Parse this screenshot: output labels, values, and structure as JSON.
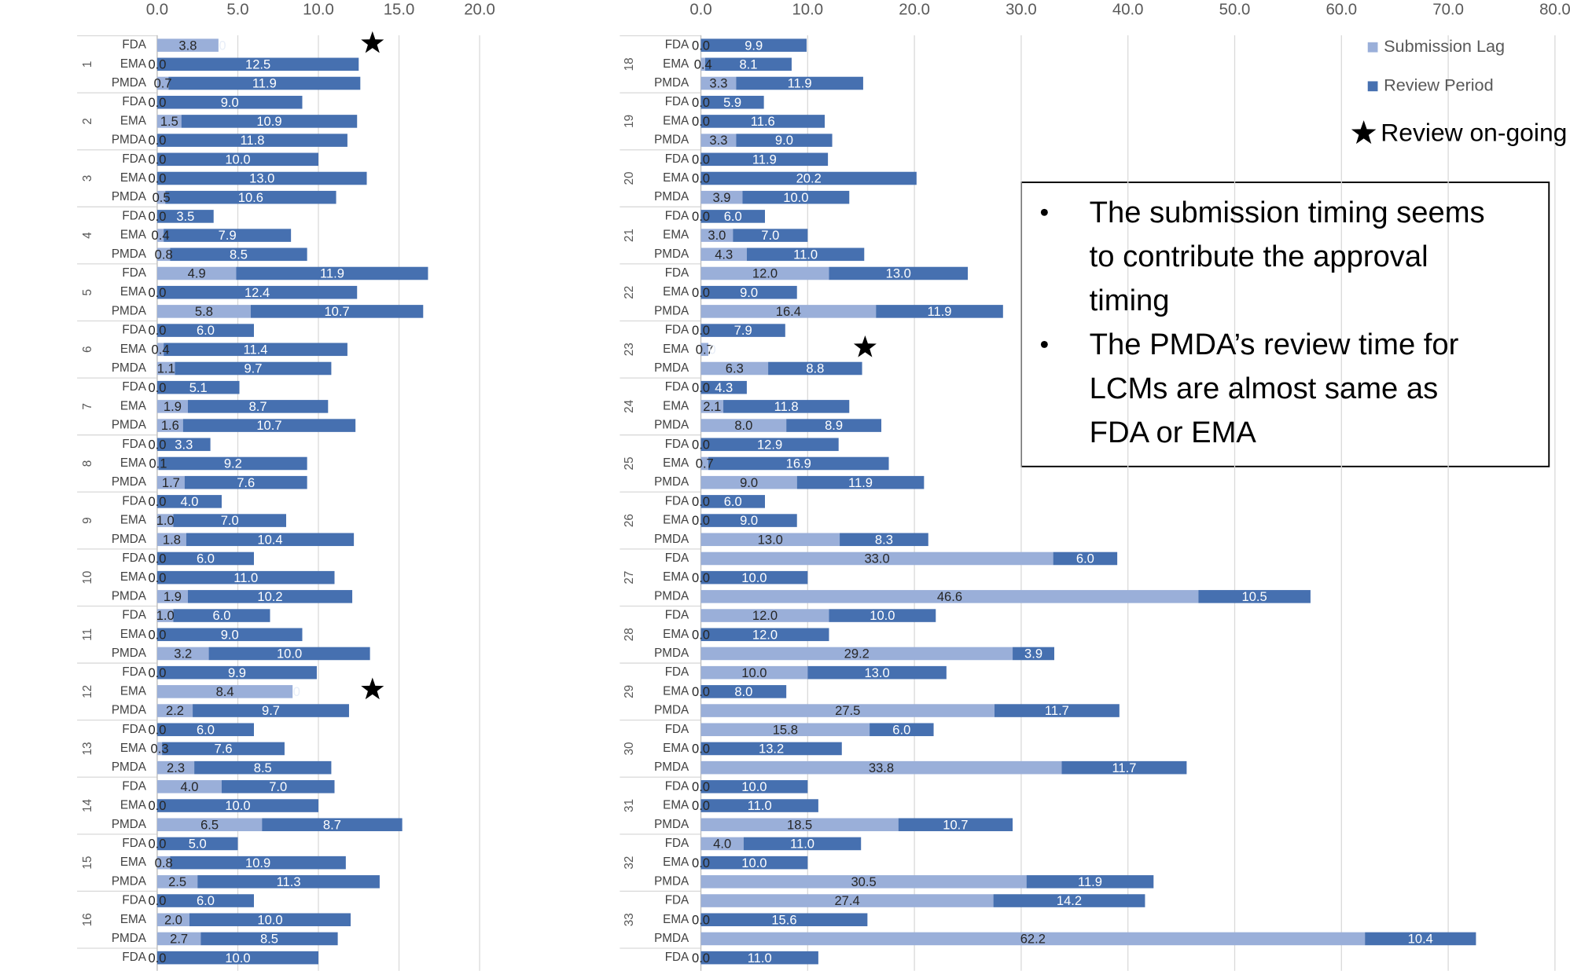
{
  "chart_data": {
    "type": "bar",
    "orientation": "horizontal",
    "stacked": true,
    "grid": true,
    "series": [
      {
        "name": "Submission Lag",
        "color": "#9aafd9"
      },
      {
        "name": "Review Period",
        "color": "#4670b0"
      }
    ],
    "marker_label": "Review on-going",
    "panels": [
      {
        "xlim": [
          0,
          20
        ],
        "xticks": [
          {
            "value": 0,
            "label": "0.0"
          },
          {
            "value": 5,
            "label": "5.0"
          },
          {
            "value": 10,
            "label": "10.0"
          },
          {
            "value": 15,
            "label": "15.0"
          },
          {
            "value": 20,
            "label": "20.0"
          }
        ],
        "groups": [
          "1",
          "2",
          "3",
          "4",
          "5",
          "6",
          "7",
          "8",
          "9",
          "10",
          "11",
          "12",
          "13",
          "14",
          "15",
          "16",
          null
        ],
        "categories": [
          "FDA",
          "EMA",
          "PMDA",
          "FDA",
          "EMA",
          "PMDA",
          "FDA",
          "EMA",
          "PMDA",
          "FDA",
          "EMA",
          "PMDA",
          "FDA",
          "EMA",
          "PMDA",
          "FDA",
          "EMA",
          "PMDA",
          "FDA",
          "EMA",
          "PMDA",
          "FDA",
          "EMA",
          "PMDA",
          "FDA",
          "EMA",
          "PMDA",
          "FDA",
          "EMA",
          "PMDA",
          "FDA",
          "EMA",
          "PMDA",
          "FDA",
          "EMA",
          "PMDA",
          "FDA",
          "EMA",
          "PMDA",
          "FDA",
          "EMA",
          "PMDA",
          "FDA",
          "EMA",
          "PMDA",
          "FDA",
          "EMA",
          "PMDA",
          "FDA"
        ],
        "lag": [
          3.8,
          0,
          0.7,
          0,
          1.5,
          0,
          0,
          0,
          0.5,
          0,
          0.4,
          0.8,
          4.9,
          0,
          5.8,
          0,
          0.4,
          1.1,
          0,
          1.9,
          1.6,
          0,
          0.1,
          1.7,
          0,
          1,
          1.8,
          0,
          0,
          1.9,
          1,
          0,
          3.2,
          0,
          8.4,
          2.2,
          0,
          0.3,
          2.3,
          4,
          0,
          6.5,
          0,
          0.8,
          2.5,
          0,
          2,
          2.7,
          0
        ],
        "lag_labels": [
          "3.8",
          "0.0",
          "0.7",
          "0.0",
          "1.5",
          "0.0",
          "0.0",
          "0.0",
          "0.5",
          "0.0",
          "0.4",
          "0.8",
          "4.9",
          "0.0",
          "5.8",
          "0.0",
          "0.4",
          "1.1",
          "0.0",
          "1.9",
          "1.6",
          "0.0",
          "0.1",
          "1.7",
          "0.0",
          "1.0",
          "1.8",
          "0.0",
          "0.0",
          "1.9",
          "1.0",
          "0.0",
          "3.2",
          "0.0",
          "8.4",
          "2.2",
          "0.0",
          "0.3",
          "2.3",
          "4.0",
          "0.0",
          "6.5",
          "0.0",
          "0.8",
          "2.5",
          "0.0",
          "2.0",
          "2.7",
          "0.0"
        ],
        "review": [
          0,
          12.5,
          11.9,
          9,
          10.9,
          11.8,
          10,
          13,
          10.6,
          3.5,
          7.9,
          8.5,
          11.9,
          12.4,
          10.7,
          6,
          11.4,
          9.7,
          5.1,
          8.7,
          10.7,
          3.3,
          9.2,
          7.6,
          4,
          7,
          10.4,
          6,
          11,
          10.2,
          6,
          9,
          10,
          9.9,
          0,
          9.7,
          6,
          7.6,
          8.5,
          7,
          10,
          8.7,
          5,
          10.9,
          11.3,
          6,
          10,
          8.5,
          10
        ],
        "review_labels": [
          "0",
          "12.5",
          "11.9",
          "9.0",
          "10.9",
          "11.8",
          "10.0",
          "13.0",
          "10.6",
          "3.5",
          "7.9",
          "8.5",
          "11.9",
          "12.4",
          "10.7",
          "6.0",
          "11.4",
          "9.7",
          "5.1",
          "8.7",
          "10.7",
          "3.3",
          "9.2",
          "7.6",
          "4.0",
          "7.0",
          "10.4",
          "6.0",
          "11.0",
          "10.2",
          "6.0",
          "9.0",
          "10.0",
          "9.9",
          "0",
          "9.7",
          "6.0",
          "7.6",
          "8.5",
          "7.0",
          "10.0",
          "8.7",
          "5.0",
          "10.9",
          "11.3",
          "6.0",
          "10.0",
          "8.5",
          "10.0"
        ],
        "ongoing": [
          0,
          34
        ]
      },
      {
        "xlim": [
          0,
          80
        ],
        "xticks": [
          {
            "value": 0,
            "label": "0.0"
          },
          {
            "value": 10,
            "label": "10.0"
          },
          {
            "value": 20,
            "label": "20.0"
          },
          {
            "value": 30,
            "label": "30.0"
          },
          {
            "value": 40,
            "label": "40.0"
          },
          {
            "value": 50,
            "label": "50.0"
          },
          {
            "value": 60,
            "label": "60.0"
          },
          {
            "value": 70,
            "label": "70.0"
          },
          {
            "value": 80,
            "label": "80.0"
          }
        ],
        "groups": [
          "18",
          "19",
          "20",
          "21",
          "22",
          "23",
          "24",
          "25",
          "26",
          "27",
          "28",
          "29",
          "30",
          "31",
          "32",
          "33",
          null
        ],
        "categories": [
          "FDA",
          "EMA",
          "PMDA",
          "FDA",
          "EMA",
          "PMDA",
          "FDA",
          "EMA",
          "PMDA",
          "FDA",
          "EMA",
          "PMDA",
          "FDA",
          "EMA",
          "PMDA",
          "FDA",
          "EMA",
          "PMDA",
          "FDA",
          "EMA",
          "PMDA",
          "FDA",
          "EMA",
          "PMDA",
          "FDA",
          "EMA",
          "PMDA",
          "FDA",
          "EMA",
          "PMDA",
          "FDA",
          "EMA",
          "PMDA",
          "FDA",
          "EMA",
          "PMDA",
          "FDA",
          "EMA",
          "PMDA",
          "FDA",
          "EMA",
          "PMDA",
          "FDA",
          "EMA",
          "PMDA",
          "FDA",
          "EMA",
          "PMDA",
          "FDA"
        ],
        "lag": [
          0,
          0.4,
          3.3,
          0,
          0,
          3.3,
          0,
          0,
          3.9,
          0,
          3,
          4.3,
          12,
          0,
          16.4,
          0,
          0.7,
          6.3,
          0,
          2.1,
          8,
          0,
          0.7,
          9,
          0,
          0,
          13,
          33,
          0,
          46.6,
          12,
          0,
          29.2,
          10,
          0,
          27.5,
          15.8,
          0,
          33.8,
          0,
          0,
          18.5,
          4,
          0,
          30.5,
          27.4,
          0,
          62.2,
          0
        ],
        "lag_labels": [
          "0.0",
          "0.4",
          "3.3",
          "0.0",
          "0.0",
          "3.3",
          "0.0",
          "0.0",
          "3.9",
          "0.0",
          "3.0",
          "4.3",
          "12.0",
          "0.0",
          "16.4",
          "0.0",
          "0.7",
          "6.3",
          "0.0",
          "2.1",
          "8.0",
          "0.0",
          "0.7",
          "9.0",
          "0.0",
          "0.0",
          "13.0",
          "33.0",
          "0.0",
          "46.6",
          "12.0",
          "0.0",
          "29.2",
          "10.0",
          "0.0",
          "27.5",
          "15.8",
          "0.0",
          "33.8",
          "0.0",
          "0.0",
          "18.5",
          "4.0",
          "0.0",
          "30.5",
          "27.4",
          "0.0",
          "62.2",
          "0.0"
        ],
        "review": [
          9.9,
          8.1,
          11.9,
          5.9,
          11.6,
          9,
          11.9,
          20.2,
          10,
          6,
          7,
          11,
          13,
          9,
          11.9,
          7.9,
          0,
          8.8,
          4.3,
          11.8,
          8.9,
          12.9,
          16.9,
          11.9,
          6,
          9,
          8.3,
          6,
          10,
          10.5,
          10,
          12,
          3.9,
          13,
          8,
          11.7,
          6,
          13.2,
          11.7,
          10,
          11,
          10.7,
          11,
          10,
          11.9,
          14.2,
          15.6,
          10.4,
          11
        ],
        "review_labels": [
          "9.9",
          "8.1",
          "11.9",
          "5.9",
          "11.6",
          "9.0",
          "11.9",
          "20.2",
          "10.0",
          "6.0",
          "7.0",
          "11.0",
          "13.0",
          "9.0",
          "11.9",
          "7.9",
          "0",
          "8.8",
          "4.3",
          "11.8",
          "8.9",
          "12.9",
          "16.9",
          "11.9",
          "6.0",
          "9.0",
          "8.3",
          "6.0",
          "10.0",
          "10.5",
          "10.0",
          "12.0",
          "3.9",
          "13.0",
          "8.0",
          "11.7",
          "6.0",
          "13.2",
          "11.7",
          "10.0",
          "11.0",
          "10.7",
          "11.0",
          "10.0",
          "11.9",
          "14.2",
          "15.6",
          "10.4",
          "11.0"
        ],
        "ongoing": [
          16
        ]
      }
    ]
  },
  "annotation": {
    "bullets": [
      [
        "The submission timing seems",
        "to contribute the approval",
        "timing"
      ],
      [
        "The PMDA’s review time for",
        "LCMs are almost same as",
        "FDA or EMA"
      ]
    ]
  }
}
